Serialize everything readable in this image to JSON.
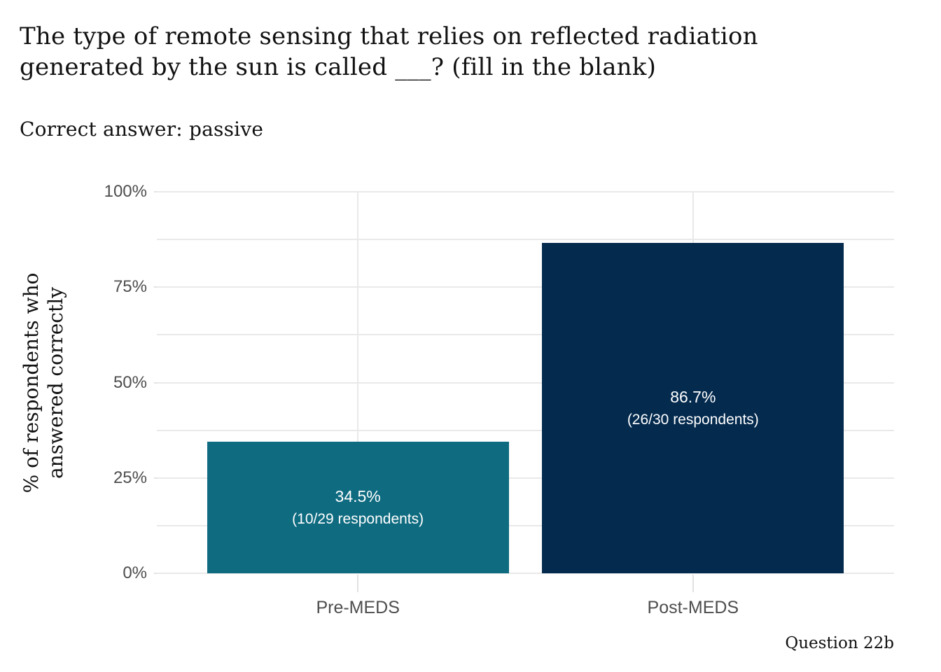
{
  "header": {
    "title_lines": [
      "The type of remote sensing that relies on reflected radiation",
      "generated by the sun is called ___? (fill in the blank)"
    ],
    "subtitle": "Correct answer: passive"
  },
  "caption": "Question 22b",
  "chart_data": {
    "type": "bar",
    "categories": [
      "Pre-MEDS",
      "Post-MEDS"
    ],
    "values": [
      34.5,
      86.7
    ],
    "counts": [
      {
        "correct": 10,
        "total": 29
      },
      {
        "correct": 26,
        "total": 30
      }
    ],
    "bar_label_lines": [
      [
        "34.5%",
        "(10/29 respondents)"
      ],
      [
        "86.7%",
        "(26/30 respondents)"
      ]
    ],
    "bar_colors": [
      "#0f6b80",
      "#042a4e"
    ],
    "ylabel_lines": [
      "% of respondents who",
      "answered correctly"
    ],
    "ylim": [
      0,
      100
    ],
    "ytick_values": [
      0,
      25,
      50,
      75,
      100
    ],
    "ytick_labels": [
      "0%",
      "25%",
      "50%",
      "75%",
      "100%"
    ],
    "gridline_values": [
      0,
      12.5,
      25,
      37.5,
      50,
      62.5,
      75,
      87.5,
      100
    ],
    "bar_width_fraction_of_category": 0.9,
    "grid_color": "#e9e9e9",
    "tick_color": "#e2e2e2",
    "axis_text_color": "#4d4d4d",
    "bar_label_color": "#ffffff",
    "legend_position": "none",
    "background_color": "#ffffff"
  }
}
